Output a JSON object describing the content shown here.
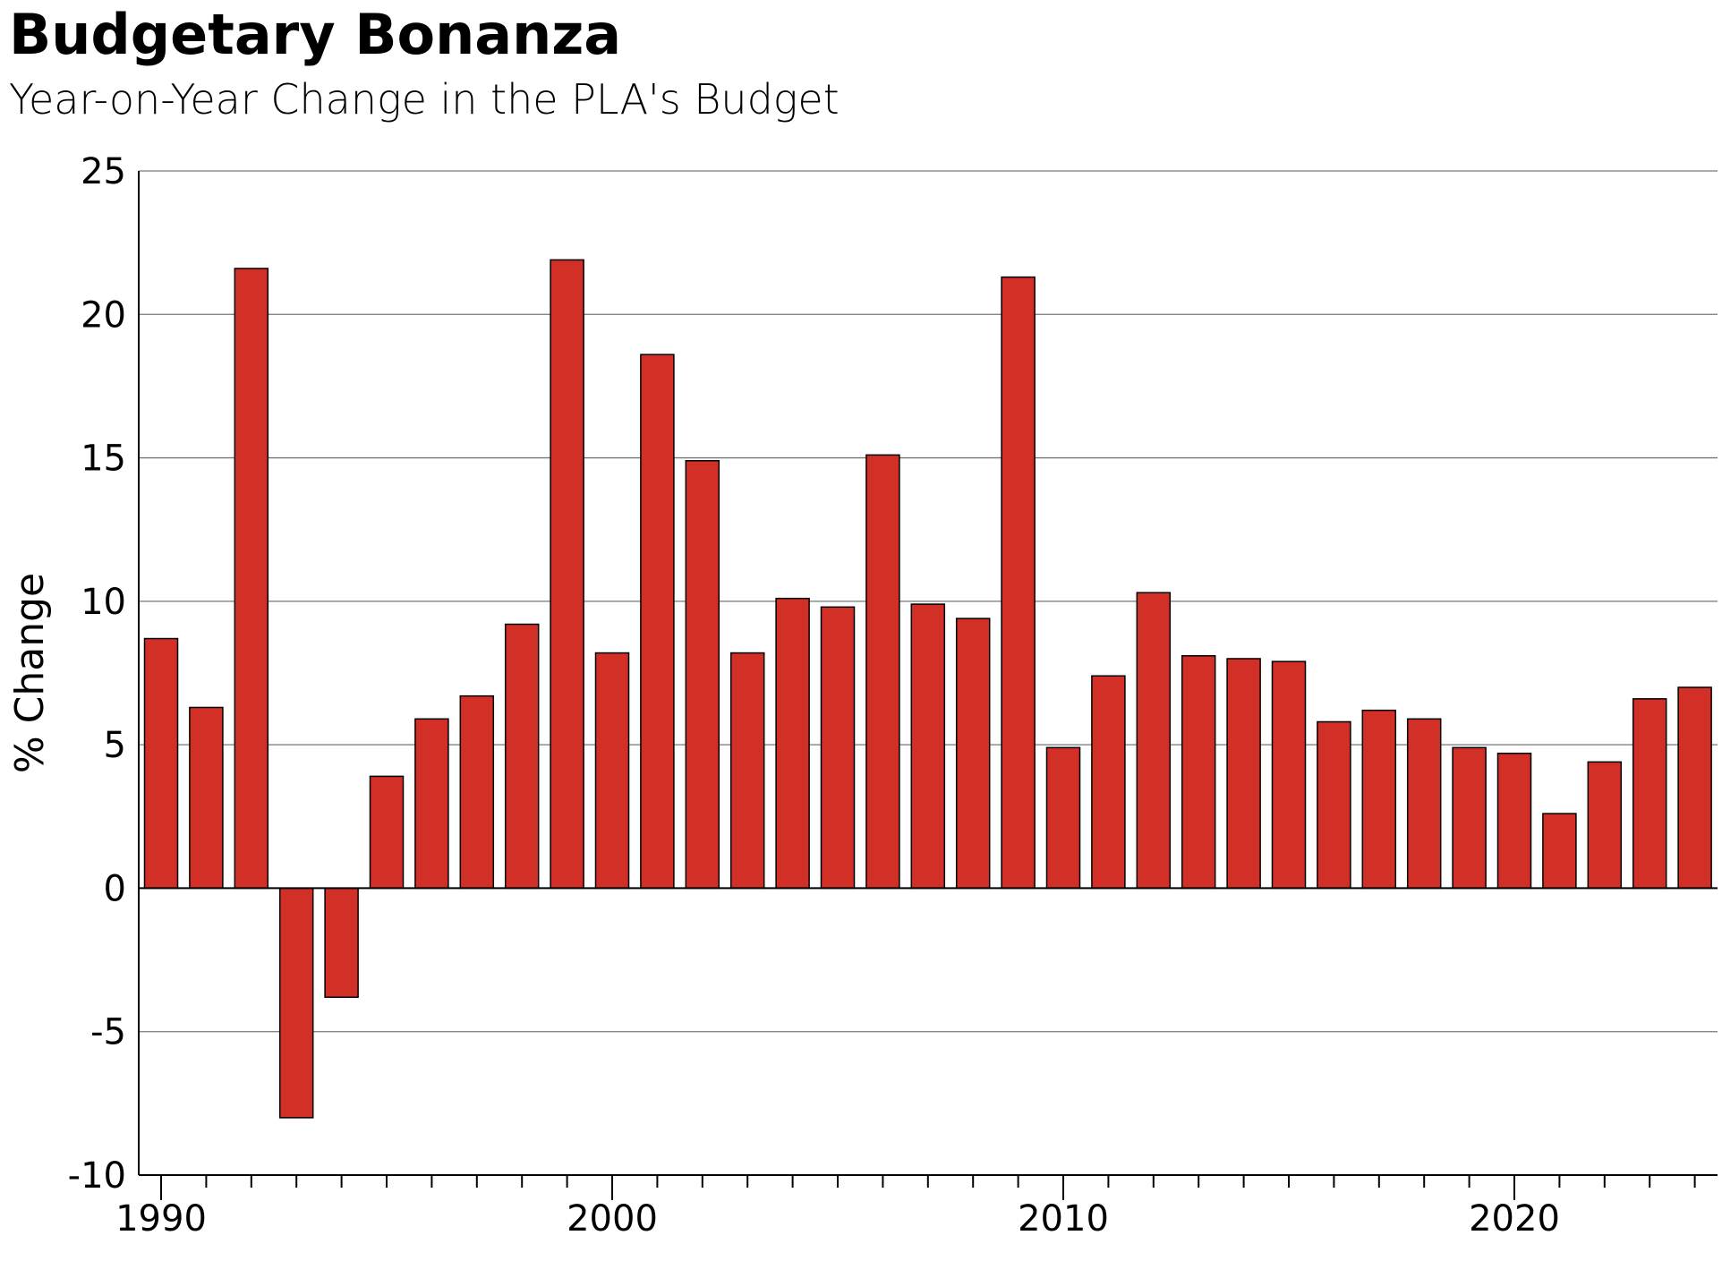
{
  "chart_data": {
    "type": "bar",
    "title": "Budgetary Bonanza",
    "subtitle": "Year-on-Year Change in the PLA's Budget",
    "xlabel": "",
    "ylabel": "% Change",
    "ylim": [
      -10,
      25
    ],
    "yticks": [
      -10,
      -5,
      0,
      5,
      10,
      15,
      20,
      25
    ],
    "xticks": [
      1990,
      2000,
      2010,
      2020
    ],
    "grid": true,
    "bar_color": "#d22f27",
    "categories": [
      1990,
      1991,
      1992,
      1993,
      1994,
      1995,
      1996,
      1997,
      1998,
      1999,
      2000,
      2001,
      2002,
      2003,
      2004,
      2005,
      2006,
      2007,
      2008,
      2009,
      2010,
      2011,
      2012,
      2013,
      2014,
      2015,
      2016,
      2017,
      2018,
      2019,
      2020,
      2021,
      2022,
      2023,
      2024
    ],
    "values": [
      8.7,
      6.3,
      21.6,
      -8.0,
      -3.8,
      3.9,
      5.9,
      6.7,
      9.2,
      21.9,
      8.2,
      18.6,
      14.9,
      8.2,
      10.1,
      9.8,
      15.1,
      9.9,
      9.4,
      21.3,
      4.9,
      7.4,
      10.3,
      8.1,
      8.0,
      7.9,
      5.8,
      6.2,
      5.9,
      4.9,
      4.7,
      2.6,
      4.4,
      6.6,
      7.0
    ]
  }
}
